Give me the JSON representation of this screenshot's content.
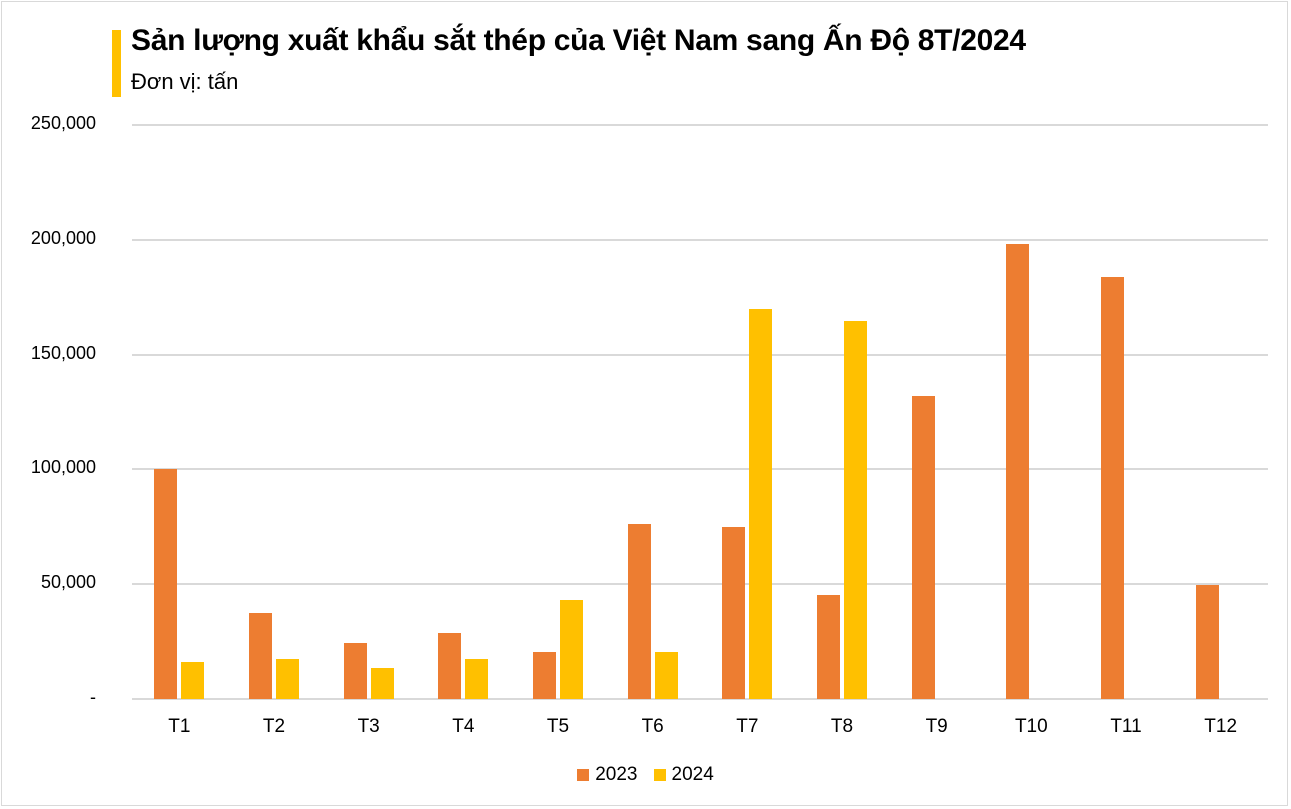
{
  "header": {
    "title": "Sản lượng xuất khẩu sắt thép của Việt Nam sang Ấn Độ 8T/2024",
    "subtitle": "Đơn vị: tấn",
    "accent_color": "#ffc000"
  },
  "y_axis": {
    "ticks": [
      "250,000",
      "200,000",
      "150,000",
      "100,000",
      "50,000",
      "-"
    ]
  },
  "legend": {
    "items": [
      {
        "label": "2023",
        "color": "#ed7d31"
      },
      {
        "label": "2024",
        "color": "#ffc000"
      }
    ]
  },
  "chart_data": {
    "type": "bar",
    "title": "Sản lượng xuất khẩu sắt thép của Việt Nam sang Ấn Độ 8T/2024",
    "subtitle": "Đơn vị: tấn",
    "xlabel": "",
    "ylabel": "tấn",
    "ylim": [
      0,
      250000
    ],
    "yticks": [
      0,
      50000,
      100000,
      150000,
      200000,
      250000
    ],
    "grid": true,
    "legend_position": "bottom",
    "categories": [
      "T1",
      "T2",
      "T3",
      "T4",
      "T5",
      "T6",
      "T7",
      "T8",
      "T9",
      "T10",
      "T11",
      "T12"
    ],
    "series": [
      {
        "name": "2023",
        "color": "#ed7d31",
        "values": [
          100000,
          37500,
          24400,
          28700,
          20500,
          76200,
          74900,
          45300,
          132000,
          198200,
          183800,
          49700
        ]
      },
      {
        "name": "2024",
        "color": "#ffc000",
        "values": [
          16100,
          17400,
          13500,
          17400,
          43100,
          20500,
          169900,
          164600,
          null,
          null,
          null,
          null
        ]
      }
    ]
  }
}
